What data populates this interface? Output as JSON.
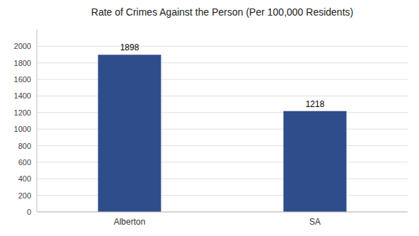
{
  "chart_data": {
    "type": "bar",
    "title": "Rate of Crimes Against the Person (Per 100,000 Residents)",
    "categories": [
      "Alberton",
      "SA"
    ],
    "values": [
      1898,
      1218
    ],
    "color": "#2e4d8a",
    "ylim": [
      0,
      2200
    ],
    "yticks": [
      0,
      200,
      400,
      600,
      800,
      1000,
      1200,
      1400,
      1600,
      1800,
      2000
    ],
    "grid": true,
    "data_labels": true
  }
}
